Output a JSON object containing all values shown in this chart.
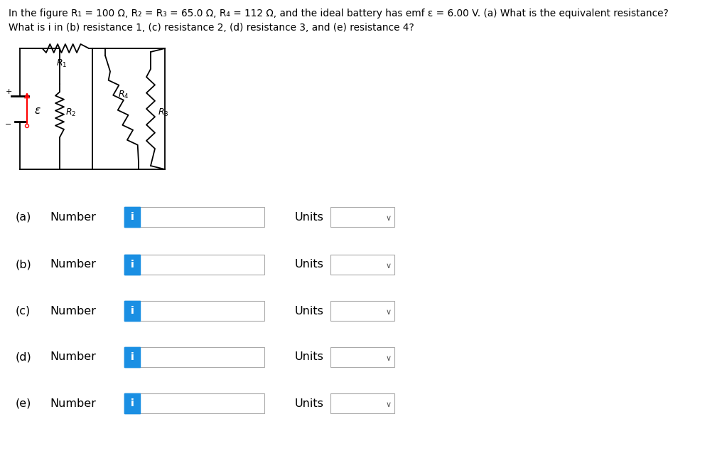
{
  "title_line1": "In the figure R₁ = 100 Ω, R₂ = R₃ = 65.0 Ω, R₄ = 112 Ω, and the ideal battery has emf ε = 6.00 V. (a) What is the equivalent resistance?",
  "title_line2": "What is i in (b) resistance 1, (c) resistance 2, (d) resistance 3, and (e) resistance 4?",
  "rows": [
    {
      "label": "(a)"
    },
    {
      "label": "(b)"
    },
    {
      "label": "(c)"
    },
    {
      "label": "(d)"
    },
    {
      "label": "(e)"
    }
  ],
  "units_label": "Units",
  "info_button_color": "#1a8fe3",
  "info_button_text": "i",
  "input_box_border": "#aaaaaa",
  "units_box_border": "#aaaaaa",
  "background_color": "#ffffff",
  "text_color": "#000000",
  "font_size_title": 9.8,
  "font_size_labels": 11.5
}
